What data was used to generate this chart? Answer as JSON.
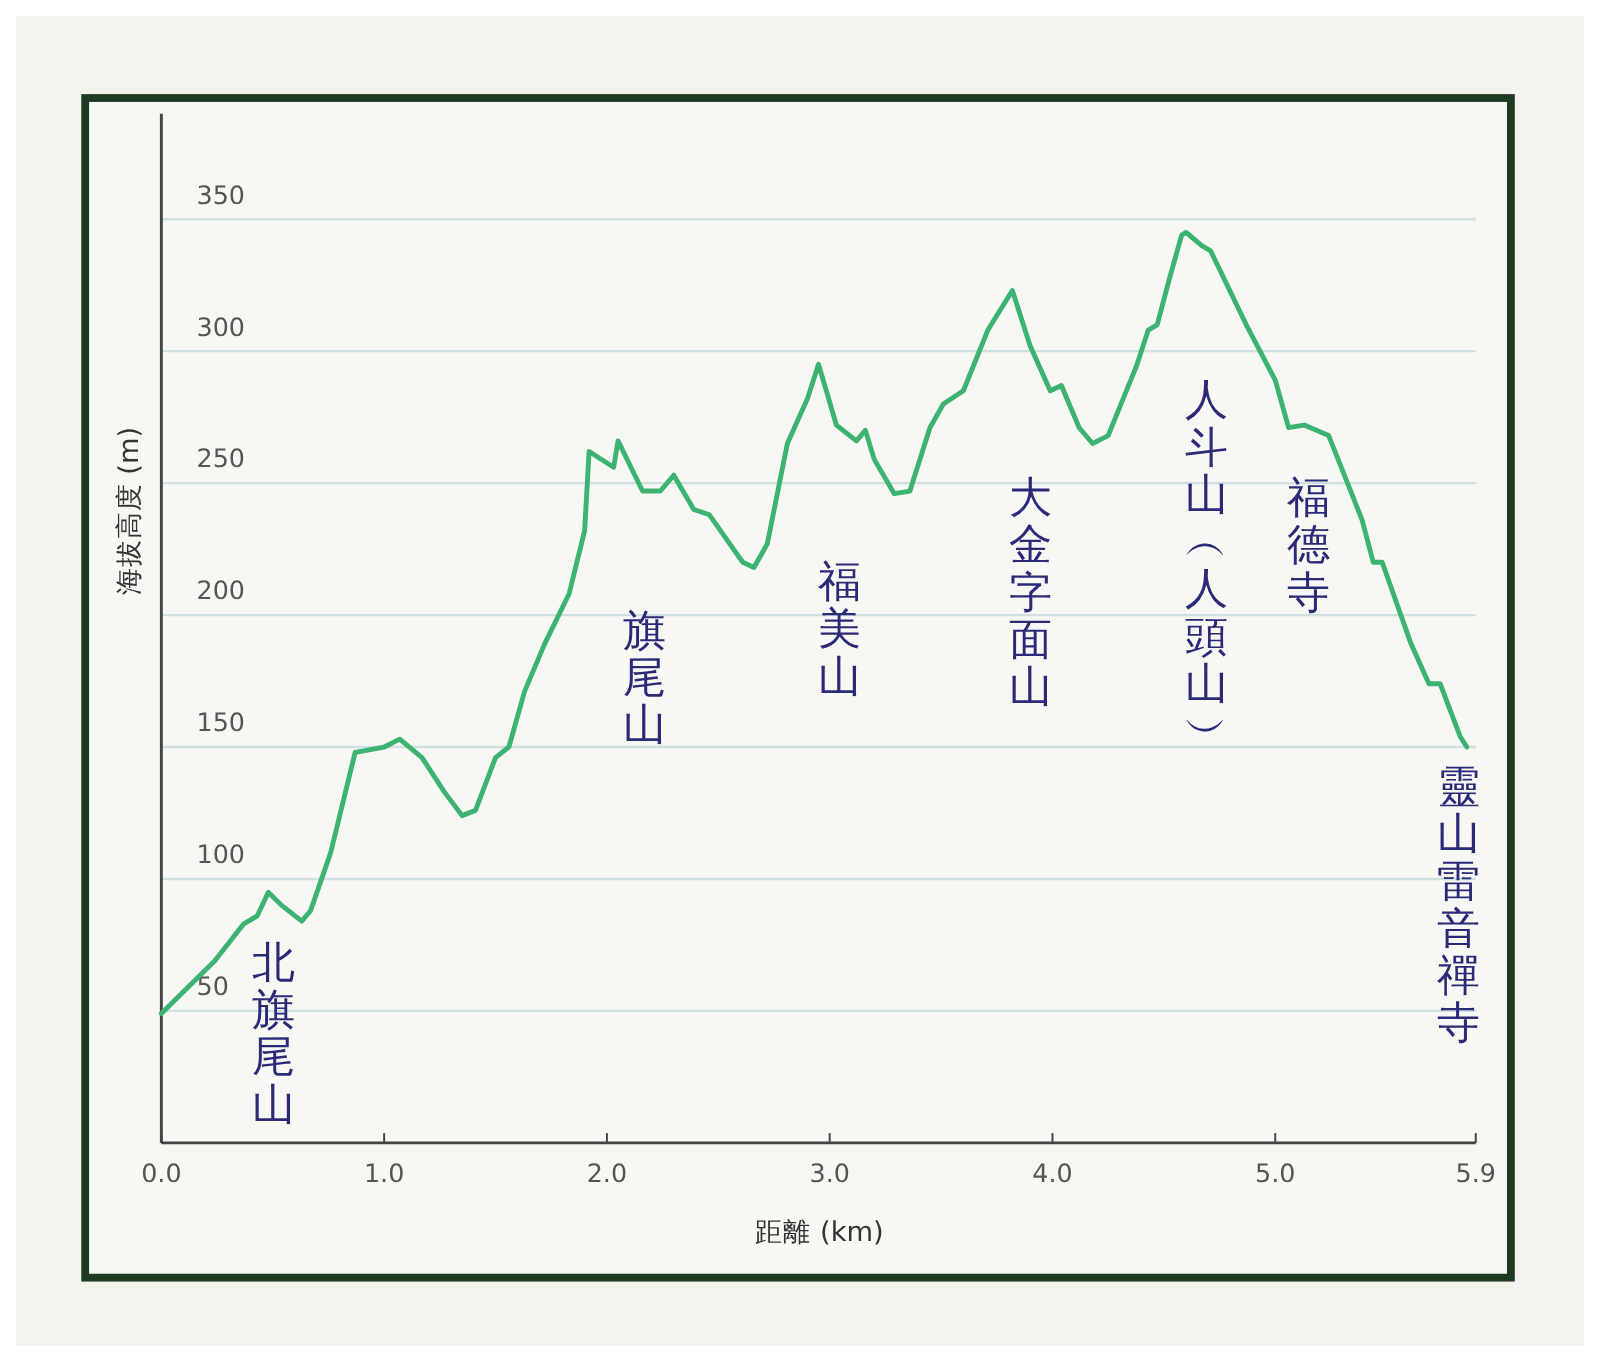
{
  "chart_data": {
    "type": "line",
    "xlabel": "距離 (km)",
    "ylabel": "海拔高度 (m)",
    "xlim": [
      0,
      5.9
    ],
    "ylim": [
      0,
      390
    ],
    "xticks": [
      {
        "value": 0,
        "label": "0.0"
      },
      {
        "value": 1,
        "label": "1.0"
      },
      {
        "value": 2,
        "label": "2.0"
      },
      {
        "value": 3,
        "label": "3.0"
      },
      {
        "value": 4,
        "label": "4.0"
      },
      {
        "value": 5,
        "label": "5.0"
      },
      5.9
    ],
    "yticks": [
      50,
      100,
      150,
      200,
      250,
      300,
      350
    ],
    "grid": "y",
    "marker": "none",
    "line_style": "solid",
    "series": [
      {
        "color": "#3cb371",
        "x": [
          0,
          0.24,
          0.37,
          0.43,
          0.48,
          0.54,
          0.63,
          0.67,
          0.76,
          0.87,
          1.0,
          1.07,
          1.17,
          1.27,
          1.35,
          1.41,
          1.5,
          1.56,
          1.63,
          1.72,
          1.83,
          1.9,
          1.92,
          2.03,
          2.05,
          2.16,
          2.24,
          2.3,
          2.39,
          2.46,
          2.61,
          2.66,
          2.72,
          2.81,
          2.9,
          2.95,
          3.03,
          3.12,
          3.16,
          3.2,
          3.29,
          3.36,
          3.45,
          3.51,
          3.6,
          3.71,
          3.82,
          3.9,
          3.99,
          4.04,
          4.12,
          4.18,
          4.25,
          4.38,
          4.43,
          4.47,
          4.53,
          4.58,
          4.6,
          4.67,
          4.71,
          4.87,
          5.0,
          5.06,
          5.13,
          5.24,
          5.39,
          5.44,
          5.48,
          5.61,
          5.69,
          5.74,
          5.83,
          5.86
        ],
        "values": [
          49,
          69,
          83,
          86,
          95,
          90,
          84,
          88,
          110,
          148,
          150,
          153,
          146,
          133,
          124,
          126,
          146,
          150,
          171,
          189,
          208,
          232,
          262,
          256,
          266,
          247,
          247,
          253,
          240,
          238,
          220,
          218,
          227,
          265,
          282,
          295,
          272,
          266,
          270,
          259,
          246,
          247,
          271,
          280,
          285,
          308,
          323,
          302,
          285,
          287,
          271,
          265,
          268,
          295,
          308,
          310,
          329,
          344,
          345,
          340,
          338,
          310,
          289,
          271,
          272,
          268,
          236,
          220,
          220,
          189,
          174,
          174,
          154,
          150
        ]
      }
    ],
    "annotations": [
      "北旗尾山",
      "旗尾山",
      "福美山",
      "大金字面山",
      "人斗山︵人頭山︶",
      "福德寺",
      "靈山雷音禪寺"
    ]
  }
}
